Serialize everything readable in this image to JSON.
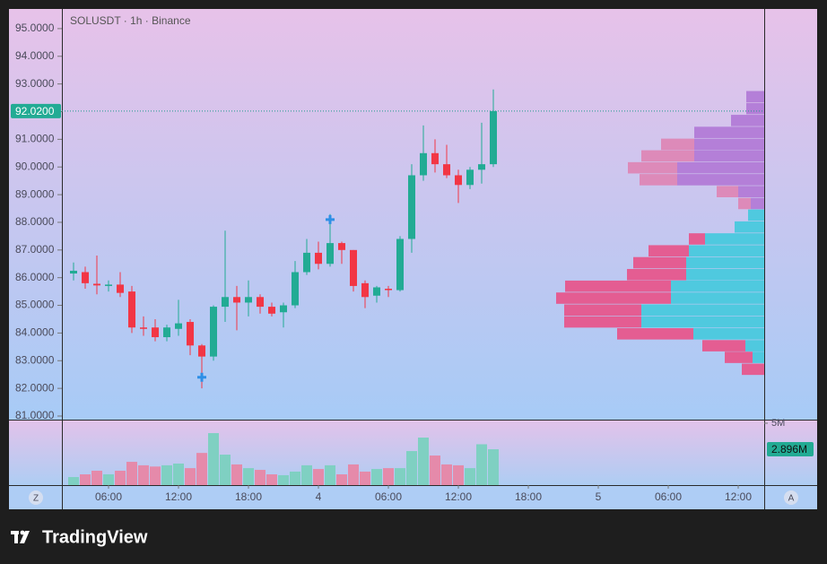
{
  "chart_data": {
    "type": "candlestick",
    "title": "SOLUSDT · 1h · Binance",
    "brand": "TradingView",
    "buttons": [
      "Z",
      "A"
    ],
    "up_color": "#22ab94",
    "down_color": "#f23645",
    "ylim": [
      80.87,
      95.71
    ],
    "yticks": [
      {
        "value": 95,
        "label": "95.0000"
      },
      {
        "value": 94,
        "label": "94.0000"
      },
      {
        "value": 93,
        "label": "93.0000"
      },
      {
        "value": 92,
        "label": "92.0000"
      },
      {
        "value": 91,
        "label": "91.0000"
      },
      {
        "value": 90,
        "label": "90.0000"
      },
      {
        "value": 89,
        "label": "89.0000"
      },
      {
        "value": 88,
        "label": "88.0000"
      },
      {
        "value": 87,
        "label": "87.0000"
      },
      {
        "value": 86,
        "label": "86.0000"
      },
      {
        "value": 85,
        "label": "85.0000"
      },
      {
        "value": 84,
        "label": "84.0000"
      },
      {
        "value": 83,
        "label": "83.0000"
      },
      {
        "value": 82,
        "label": "82.0000"
      },
      {
        "value": 81,
        "label": "81.0000"
      }
    ],
    "last_price": 92.02,
    "last_price_label": "92.0200",
    "xticks": [
      {
        "value": 3,
        "label": "06:00"
      },
      {
        "value": 9,
        "label": "12:00"
      },
      {
        "value": 15,
        "label": "18:00"
      },
      {
        "value": 21,
        "label": "4"
      },
      {
        "value": 27,
        "label": "06:00"
      },
      {
        "value": 33,
        "label": "12:00"
      },
      {
        "value": 39,
        "label": "18:00"
      },
      {
        "value": 45,
        "label": "5"
      },
      {
        "value": 51,
        "label": "06:00"
      },
      {
        "value": 57,
        "label": "12:00"
      }
    ],
    "open": [
      86.15,
      86.2,
      85.78,
      85.7,
      85.75,
      85.5,
      84.2,
      84.2,
      83.85,
      84.15,
      84.4,
      83.55,
      83.15,
      84.95,
      85.3,
      85.1,
      85.3,
      84.95,
      84.75,
      85.0,
      86.2,
      86.9,
      86.5,
      87.25,
      87.0,
      85.8,
      85.35,
      85.6,
      85.55,
      87.4,
      89.7,
      90.5,
      90.1,
      89.7,
      89.35,
      89.9,
      90.1
    ],
    "high": [
      86.55,
      86.4,
      86.8,
      85.9,
      86.2,
      85.7,
      84.6,
      84.5,
      84.3,
      85.2,
      84.5,
      83.6,
      85.0,
      87.7,
      85.7,
      85.9,
      85.4,
      85.1,
      85.1,
      86.6,
      87.4,
      87.3,
      88.3,
      87.3,
      87.0,
      85.9,
      85.7,
      85.7,
      87.5,
      90.1,
      91.5,
      91.0,
      90.8,
      89.9,
      90.0,
      91.6,
      92.8
    ],
    "low": [
      85.9,
      85.6,
      85.4,
      85.5,
      85.3,
      84.0,
      83.9,
      83.7,
      83.7,
      83.9,
      83.2,
      82.0,
      83.0,
      84.4,
      84.1,
      84.6,
      84.7,
      84.6,
      84.2,
      84.9,
      86.1,
      86.3,
      86.4,
      86.5,
      85.5,
      84.9,
      85.1,
      85.3,
      85.5,
      86.9,
      89.5,
      89.8,
      89.6,
      88.7,
      89.2,
      89.4,
      90.0
    ],
    "close": [
      86.25,
      85.8,
      85.72,
      85.75,
      85.45,
      84.2,
      84.15,
      83.85,
      84.2,
      84.35,
      83.55,
      83.15,
      84.95,
      85.3,
      85.1,
      85.3,
      84.95,
      84.7,
      85.0,
      86.2,
      86.9,
      86.5,
      87.25,
      87.0,
      85.7,
      85.3,
      85.65,
      85.55,
      87.4,
      89.7,
      90.5,
      90.1,
      89.7,
      89.35,
      89.9,
      90.1,
      92.02
    ],
    "markers": [
      {
        "index": 11,
        "price": 82.4
      },
      {
        "index": 22,
        "price": 88.1
      }
    ],
    "volume": {
      "values": [
        0.65,
        0.87,
        1.16,
        0.87,
        1.16,
        1.88,
        1.6,
        1.5,
        1.6,
        1.74,
        1.37,
        2.6,
        4.2,
        2.46,
        1.67,
        1.37,
        1.23,
        0.87,
        0.8,
        1.09,
        1.6,
        1.3,
        1.6,
        0.87,
        1.67,
        1.09,
        1.3,
        1.37,
        1.37,
        2.75,
        3.84,
        2.39,
        1.67,
        1.6,
        1.37,
        3.3,
        2.896
      ],
      "ylim": [
        0,
        5.29
      ],
      "yticks": [
        {
          "value": 5,
          "label": "5M"
        }
      ],
      "last_label": "2.896M",
      "up_color": "#7fd0c2",
      "down_color": "#e58aaa"
    },
    "profile_upper": {
      "prices": [
        92.54,
        92.11,
        91.68,
        91.25,
        90.82,
        90.4,
        89.97,
        89.54,
        89.11,
        88.68
      ],
      "up": [
        20,
        20,
        37,
        78,
        78,
        78,
        97,
        97,
        29,
        15
      ],
      "down": [
        0,
        0,
        0,
        0,
        37,
        59,
        55,
        42,
        24,
        14
      ],
      "up_color": "#b47fd8",
      "down_color": "#dd8ab9"
    },
    "profile_lower": {
      "prices": [
        88.26,
        87.83,
        87.4,
        86.97,
        86.54,
        86.11,
        85.69,
        85.26,
        84.83,
        84.4,
        83.97,
        83.54,
        83.12,
        82.69
      ],
      "up": [
        18,
        33,
        66,
        84,
        87,
        87,
        104,
        104,
        137,
        137,
        79,
        21,
        13,
        0
      ],
      "down": [
        0,
        0,
        18,
        45,
        59,
        66,
        118,
        128,
        86,
        86,
        85,
        48,
        31,
        25
      ],
      "up_color": "#4fc9df",
      "down_color": "#e45d92"
    }
  }
}
